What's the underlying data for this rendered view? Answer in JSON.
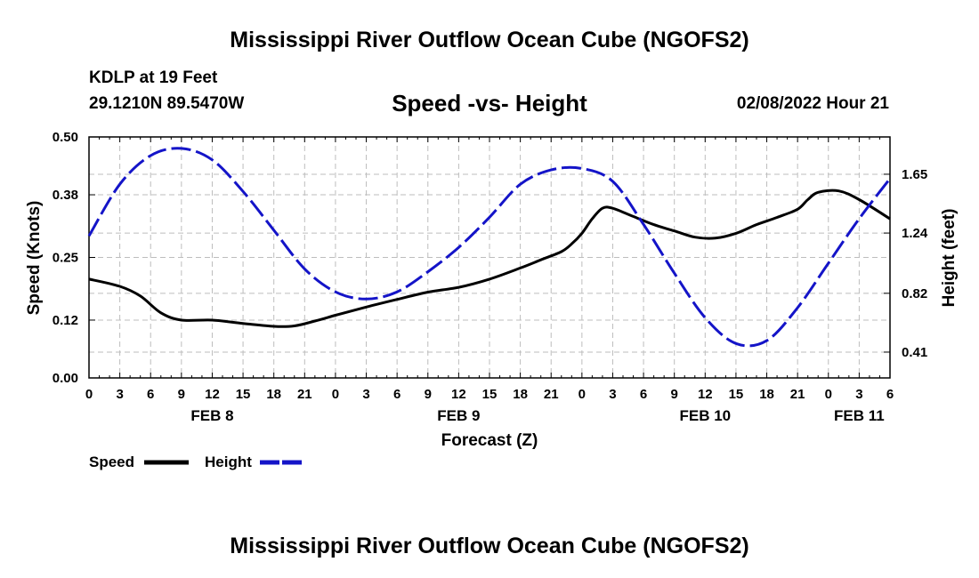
{
  "page": {
    "title": "Mississippi River Outflow Ocean Cube (NGOFS2)",
    "station": "KDLP at 19 Feet",
    "coordinates": "29.1210N  89.5470W",
    "datetime": "02/08/2022 Hour 21",
    "footer_title": "Mississippi River Outflow Ocean Cube (NGOFS2)"
  },
  "chart_data": {
    "type": "line",
    "title": "Speed -vs- Height",
    "xlabel": "Forecast (Z)",
    "ylabel_left": "Speed (Knots)",
    "ylabel_right": "Height (feet)",
    "grid": true,
    "legend_position": "bottom-left",
    "x_unit": "hours since Feb 8 00Z",
    "xlim": [
      0,
      78
    ],
    "x_ticks": [
      0,
      3,
      6,
      9,
      12,
      15,
      18,
      21,
      24,
      27,
      30,
      33,
      36,
      39,
      42,
      45,
      48,
      51,
      54,
      57,
      60,
      63,
      66,
      69,
      72,
      75,
      78
    ],
    "x_tick_labels": [
      "0",
      "3",
      "6",
      "9",
      "12",
      "15",
      "18",
      "21",
      "0",
      "3",
      "6",
      "9",
      "12",
      "15",
      "18",
      "21",
      "0",
      "3",
      "6",
      "9",
      "12",
      "15",
      "18",
      "21",
      "0",
      "3",
      "6"
    ],
    "date_labels": [
      {
        "x": 12,
        "label": "FEB 8"
      },
      {
        "x": 36,
        "label": "FEB 9"
      },
      {
        "x": 60,
        "label": "FEB 10"
      },
      {
        "x": 75,
        "label": "FEB 11"
      }
    ],
    "left_axis": {
      "ylim": [
        0,
        0.5
      ],
      "ticks": [
        0,
        0.12,
        0.25,
        0.38,
        0.5
      ],
      "tick_labels": [
        "0.00",
        "0.12",
        "0.25",
        "0.38",
        "0.50"
      ]
    },
    "right_axis": {
      "ylim": [
        0.23,
        1.91
      ],
      "ticks": [
        0.41,
        0.82,
        1.24,
        1.65
      ],
      "tick_labels": [
        "0.41",
        "0.82",
        "1.24",
        "1.65"
      ]
    },
    "series": [
      {
        "name": "Speed",
        "axis": "left",
        "color": "#000000",
        "style": "solid",
        "x": [
          0,
          3,
          5,
          7,
          9,
          12,
          15,
          18,
          20,
          22,
          24,
          27,
          30,
          33,
          36,
          39,
          42,
          44,
          46,
          47,
          48,
          49,
          50,
          51,
          53,
          55,
          57,
          59,
          61,
          63,
          65,
          67,
          69,
          70,
          71,
          73,
          75,
          78
        ],
        "values": [
          0.205,
          0.19,
          0.17,
          0.135,
          0.12,
          0.12,
          0.113,
          0.107,
          0.108,
          0.118,
          0.13,
          0.147,
          0.163,
          0.178,
          0.188,
          0.205,
          0.228,
          0.245,
          0.262,
          0.278,
          0.3,
          0.33,
          0.352,
          0.352,
          0.335,
          0.318,
          0.305,
          0.292,
          0.29,
          0.3,
          0.318,
          0.333,
          0.35,
          0.37,
          0.385,
          0.388,
          0.37,
          0.33
        ]
      },
      {
        "name": "Height",
        "axis": "right",
        "color": "#1414c8",
        "style": "dashed",
        "x": [
          0,
          3,
          6,
          9,
          12,
          15,
          18,
          21,
          24,
          27,
          30,
          33,
          36,
          39,
          42,
          45,
          48,
          51,
          54,
          57,
          60,
          63,
          66,
          69,
          72,
          75,
          78
        ],
        "values": [
          1.22,
          1.58,
          1.78,
          1.83,
          1.75,
          1.53,
          1.26,
          0.99,
          0.83,
          0.78,
          0.83,
          0.97,
          1.14,
          1.35,
          1.58,
          1.68,
          1.69,
          1.6,
          1.3,
          0.96,
          0.65,
          0.47,
          0.49,
          0.72,
          1.03,
          1.34,
          1.62
        ]
      }
    ]
  }
}
